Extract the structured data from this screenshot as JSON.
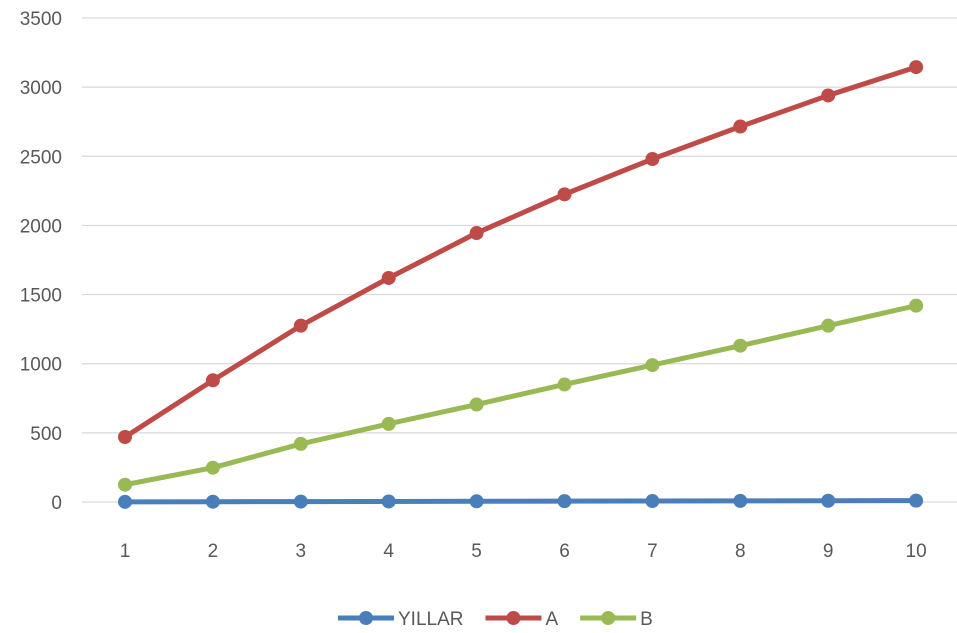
{
  "chart_data": {
    "type": "line",
    "title": "",
    "xlabel": "",
    "ylabel": "",
    "x": [
      1,
      2,
      3,
      4,
      5,
      6,
      7,
      8,
      9,
      10
    ],
    "x_tick_labels": [
      "1",
      "2",
      "3",
      "4",
      "5",
      "6",
      "7",
      "8",
      "9",
      "10"
    ],
    "y_ticks": [
      0,
      500,
      1000,
      1500,
      2000,
      2500,
      3000,
      3500
    ],
    "y_tick_labels": [
      "0",
      "500",
      "1000",
      "1500",
      "2000",
      "2500",
      "3000",
      "3500"
    ],
    "ylim": [
      0,
      3500
    ],
    "grid": true,
    "legend_position": "bottom",
    "series": [
      {
        "name": "YILLAR",
        "color": "#4a7ebb",
        "values": [
          1,
          2,
          3,
          4,
          5,
          6,
          7,
          8,
          9,
          10
        ]
      },
      {
        "name": "A",
        "color": "#be4b48",
        "values": [
          470,
          880,
          1275,
          1620,
          1945,
          2225,
          2480,
          2715,
          2940,
          3145
        ]
      },
      {
        "name": "B",
        "color": "#98b954",
        "values": [
          125,
          248,
          420,
          565,
          705,
          850,
          990,
          1130,
          1275,
          1420
        ]
      }
    ]
  }
}
